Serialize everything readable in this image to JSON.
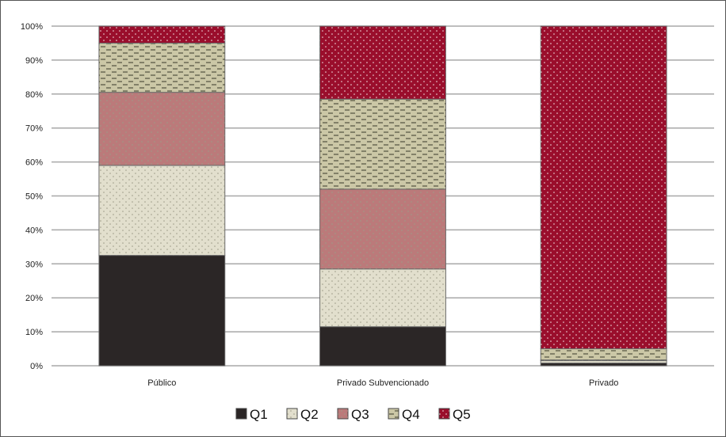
{
  "chart_data": {
    "type": "bar",
    "stacked": true,
    "normalized": true,
    "categories": [
      "Público",
      "Privado Subvencionado",
      "Privado"
    ],
    "series": [
      {
        "name": "Q1",
        "values": [
          32.5,
          11.5,
          0.8
        ],
        "color": "#2b2626",
        "pattern": "solid"
      },
      {
        "name": "Q2",
        "values": [
          26.5,
          17.0,
          0.7
        ],
        "color": "#e2dfcd",
        "pattern": "dots"
      },
      {
        "name": "Q3",
        "values": [
          21.5,
          23.5,
          0.2
        ],
        "color": "#bb7a7a",
        "pattern": "dots"
      },
      {
        "name": "Q4",
        "values": [
          14.5,
          26.5,
          3.3
        ],
        "color": "#cbc7a6",
        "pattern": "dashes"
      },
      {
        "name": "Q5",
        "values": [
          5.0,
          21.5,
          95.0
        ],
        "color": "#9a0e2c",
        "pattern": "dots"
      }
    ],
    "yticks": [
      "0%",
      "10%",
      "20%",
      "30%",
      "40%",
      "50%",
      "60%",
      "70%",
      "80%",
      "90%",
      "100%"
    ],
    "ylim": [
      0,
      100
    ],
    "grid": true,
    "legend": "bottom"
  }
}
